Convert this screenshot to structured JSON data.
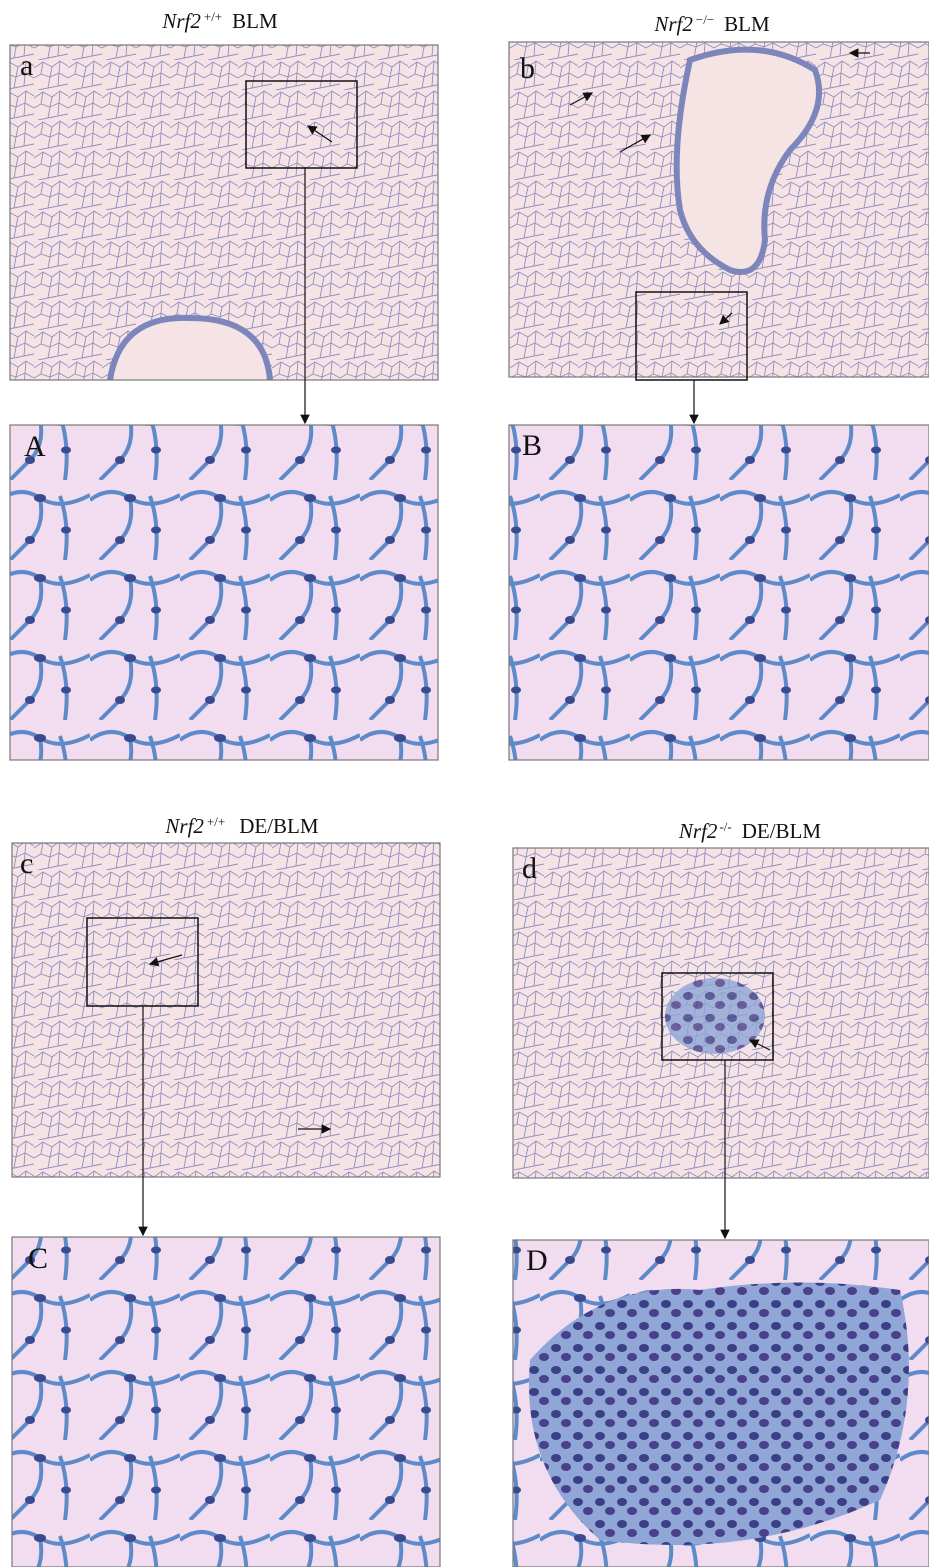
{
  "figure": {
    "groups": [
      {
        "title": {
          "gene": "Nrf2",
          "genotype": "+/+",
          "treatment": "BLM"
        },
        "overview_label": "a",
        "detail_label": "A"
      },
      {
        "title": {
          "gene": "Nrf2",
          "genotype": "−/−",
          "treatment": "BLM"
        },
        "overview_label": "b",
        "detail_label": "B"
      },
      {
        "title": {
          "gene": "Nrf2",
          "genotype": "+/+",
          "treatment": "DE/BLM"
        },
        "overview_label": "c",
        "detail_label": "C"
      },
      {
        "title": {
          "gene": "Nrf2",
          "genotype": "-/-",
          "treatment": "DE/BLM"
        },
        "overview_label": "d",
        "detail_label": "D"
      }
    ]
  }
}
